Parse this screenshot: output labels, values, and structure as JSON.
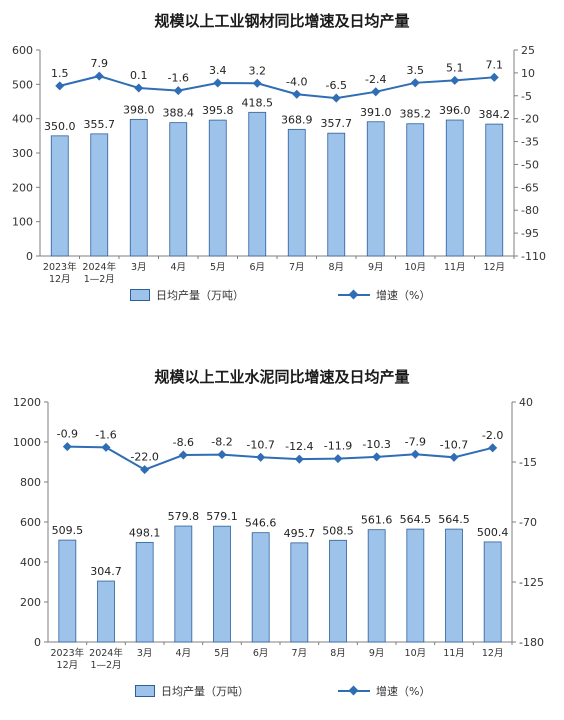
{
  "chart_data": [
    {
      "type": "bar",
      "title": "规模以上工业钢材同比增速及日均产量",
      "categories": [
        "2023年\n12月",
        "2024年\n1—2月",
        "3月",
        "4月",
        "5月",
        "6月",
        "7月",
        "8月",
        "9月",
        "10月",
        "11月",
        "12月"
      ],
      "series": [
        {
          "name": "日均产量（万吨）",
          "type": "bar",
          "axis": "left",
          "values": [
            350.0,
            355.7,
            398.0,
            388.4,
            395.8,
            418.5,
            368.9,
            357.7,
            391.0,
            385.2,
            396.0,
            384.2
          ],
          "labels": [
            "350.0",
            "355.7",
            "398.0",
            "388.4",
            "395.8",
            "418.5",
            "368.9",
            "357.7",
            "391.0",
            "385.2",
            "396.0",
            "384.2"
          ]
        },
        {
          "name": "增速（%）",
          "type": "line",
          "axis": "right",
          "values": [
            1.5,
            7.9,
            0.1,
            -1.6,
            3.4,
            3.2,
            -4.0,
            -6.5,
            -2.4,
            3.5,
            5.1,
            7.1
          ],
          "labels": [
            "1.5",
            "7.9",
            "0.1",
            "-1.6",
            "3.4",
            "3.2",
            "-4.0",
            "-6.5",
            "-2.4",
            "3.5",
            "5.1",
            "7.1"
          ]
        }
      ],
      "ylim_left": [
        0,
        600
      ],
      "yticks_left": [
        0,
        100,
        200,
        300,
        400,
        500,
        600
      ],
      "ylim_right": [
        -110,
        25
      ],
      "yticks_right": [
        25,
        10,
        -5,
        -20,
        -35,
        -50,
        -65,
        -80,
        -95,
        -110
      ],
      "grid": false,
      "legend": "bottom",
      "colors": {
        "bar_fill": "#9dc3ea",
        "bar_stroke": "#2e5f9a",
        "line": "#2f6db5"
      }
    },
    {
      "type": "bar",
      "title": "规模以上工业水泥同比增速及日均产量",
      "categories": [
        "2023年\n12月",
        "2024年\n1—2月",
        "3月",
        "4月",
        "5月",
        "6月",
        "7月",
        "8月",
        "9月",
        "10月",
        "11月",
        "12月"
      ],
      "series": [
        {
          "name": "日均产量（万吨）",
          "type": "bar",
          "axis": "left",
          "values": [
            509.5,
            304.7,
            498.1,
            579.8,
            579.1,
            546.6,
            495.7,
            508.5,
            561.6,
            564.5,
            564.5,
            500.4
          ],
          "labels": [
            "509.5",
            "304.7",
            "498.1",
            "579.8",
            "579.1",
            "546.6",
            "495.7",
            "508.5",
            "561.6",
            "564.5",
            "564.5",
            "500.4"
          ]
        },
        {
          "name": "增速（%）",
          "type": "line",
          "axis": "right",
          "values": [
            -0.9,
            -1.6,
            -22.0,
            -8.6,
            -8.2,
            -10.7,
            -12.4,
            -11.9,
            -10.3,
            -7.9,
            -10.7,
            -2.0
          ],
          "labels": [
            "-0.9",
            "-1.6",
            "-22.0",
            "-8.6",
            "-8.2",
            "-10.7",
            "-12.4",
            "-11.9",
            "-10.3",
            "-7.9",
            "-10.7",
            "-2.0"
          ]
        }
      ],
      "ylim_left": [
        0,
        1200
      ],
      "yticks_left": [
        0,
        200,
        400,
        600,
        800,
        1000,
        1200
      ],
      "ylim_right": [
        -180,
        40
      ],
      "yticks_right": [
        40,
        -15,
        -70,
        -125,
        -180
      ],
      "grid": false,
      "legend": "bottom",
      "colors": {
        "bar_fill": "#9dc3ea",
        "bar_stroke": "#2e5f9a",
        "line": "#2f6db5"
      }
    }
  ]
}
